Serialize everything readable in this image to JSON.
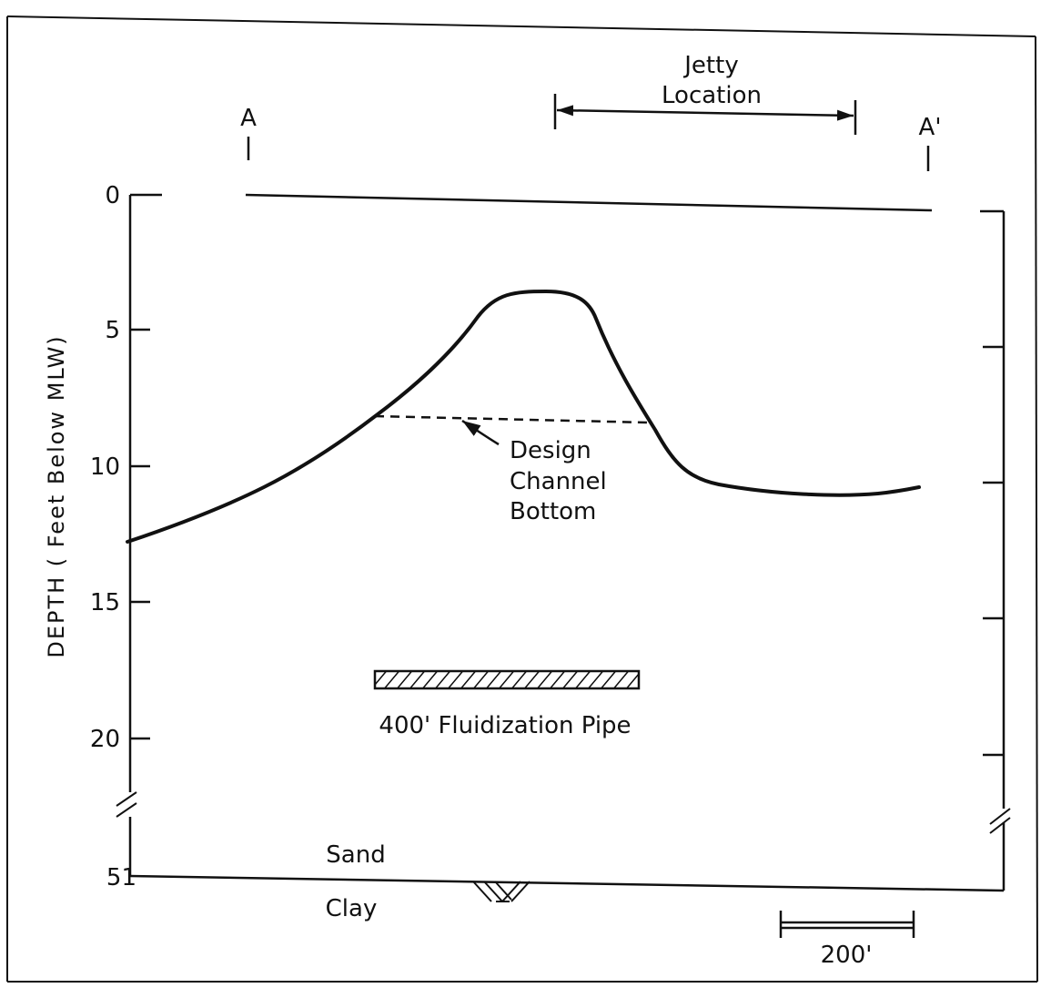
{
  "section": {
    "start_label": "A",
    "end_label": "A'"
  },
  "jetty": {
    "line1": "Jetty",
    "line2": "Location"
  },
  "axis": {
    "title": "DEPTH ( Feet Below MLW)",
    "ticks": [
      "0",
      "5",
      "10",
      "15",
      "20",
      "51"
    ]
  },
  "annotation": {
    "line1": "Design",
    "line2": "Channel",
    "line3": "Bottom"
  },
  "pipe": {
    "label": "400' Fluidization Pipe"
  },
  "layers": {
    "upper": "Sand",
    "lower": "Clay"
  },
  "scale_bar": {
    "label": "200'"
  },
  "colors": {
    "ink": "#111111",
    "paper": "#ffffff"
  }
}
